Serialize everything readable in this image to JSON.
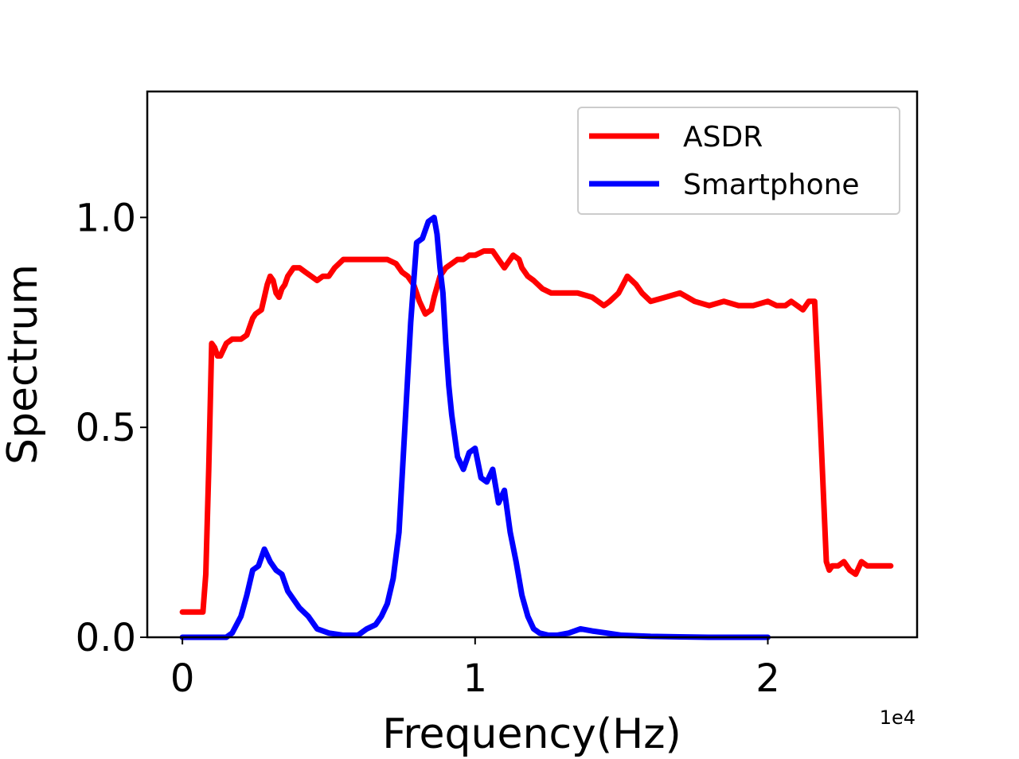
{
  "chart_data": {
    "type": "line",
    "xlabel": "Frequency(Hz)",
    "ylabel": "Spectrum",
    "x_offset_label": "1e4",
    "xlim": [
      -0.12,
      2.51
    ],
    "ylim": [
      0.0,
      1.3
    ],
    "x_ticks": [
      0,
      1,
      2
    ],
    "x_tick_labels": [
      "0",
      "1",
      "2"
    ],
    "y_ticks": [
      0.0,
      0.5,
      1.0
    ],
    "y_tick_labels": [
      "0.0",
      "0.5",
      "1.0"
    ],
    "grid": false,
    "legend_position": "upper-right",
    "series": [
      {
        "name": "ASDR",
        "color": "#ff0000",
        "x": [
          0,
          0.03,
          0.07,
          0.08,
          0.09,
          0.1,
          0.11,
          0.12,
          0.13,
          0.15,
          0.17,
          0.19,
          0.2,
          0.22,
          0.24,
          0.25,
          0.27,
          0.29,
          0.3,
          0.31,
          0.32,
          0.33,
          0.34,
          0.35,
          0.36,
          0.38,
          0.4,
          0.42,
          0.44,
          0.46,
          0.48,
          0.5,
          0.52,
          0.55,
          0.6,
          0.65,
          0.7,
          0.73,
          0.75,
          0.77,
          0.79,
          0.81,
          0.83,
          0.85,
          0.86,
          0.88,
          0.9,
          0.92,
          0.94,
          0.96,
          0.98,
          1.0,
          1.03,
          1.06,
          1.08,
          1.1,
          1.12,
          1.13,
          1.15,
          1.16,
          1.18,
          1.2,
          1.23,
          1.26,
          1.3,
          1.35,
          1.4,
          1.42,
          1.44,
          1.46,
          1.49,
          1.52,
          1.55,
          1.57,
          1.6,
          1.65,
          1.7,
          1.75,
          1.8,
          1.85,
          1.9,
          1.95,
          2.0,
          2.03,
          2.06,
          2.08,
          2.1,
          2.12,
          2.14,
          2.16,
          2.18,
          2.2,
          2.21,
          2.22,
          2.24,
          2.26,
          2.28,
          2.3,
          2.32,
          2.34,
          2.37,
          2.4,
          2.42
        ],
        "y": [
          0.06,
          0.06,
          0.06,
          0.15,
          0.4,
          0.7,
          0.69,
          0.67,
          0.67,
          0.7,
          0.71,
          0.71,
          0.71,
          0.72,
          0.76,
          0.77,
          0.78,
          0.84,
          0.86,
          0.85,
          0.82,
          0.81,
          0.83,
          0.84,
          0.86,
          0.88,
          0.88,
          0.87,
          0.86,
          0.85,
          0.86,
          0.86,
          0.88,
          0.9,
          0.9,
          0.9,
          0.9,
          0.89,
          0.87,
          0.86,
          0.84,
          0.8,
          0.77,
          0.78,
          0.81,
          0.86,
          0.88,
          0.89,
          0.9,
          0.9,
          0.91,
          0.91,
          0.92,
          0.92,
          0.9,
          0.88,
          0.9,
          0.91,
          0.9,
          0.88,
          0.86,
          0.85,
          0.83,
          0.82,
          0.82,
          0.82,
          0.81,
          0.8,
          0.79,
          0.8,
          0.82,
          0.86,
          0.84,
          0.82,
          0.8,
          0.81,
          0.82,
          0.8,
          0.79,
          0.8,
          0.79,
          0.79,
          0.8,
          0.79,
          0.79,
          0.8,
          0.79,
          0.78,
          0.8,
          0.8,
          0.5,
          0.18,
          0.16,
          0.17,
          0.17,
          0.18,
          0.16,
          0.15,
          0.18,
          0.17,
          0.17,
          0.17,
          0.17
        ]
      },
      {
        "name": "Smartphone",
        "color": "#0000ff",
        "x": [
          0,
          0.1,
          0.15,
          0.17,
          0.2,
          0.22,
          0.24,
          0.26,
          0.28,
          0.3,
          0.32,
          0.34,
          0.36,
          0.38,
          0.4,
          0.43,
          0.46,
          0.5,
          0.55,
          0.6,
          0.63,
          0.66,
          0.68,
          0.7,
          0.72,
          0.74,
          0.76,
          0.78,
          0.8,
          0.82,
          0.84,
          0.86,
          0.87,
          0.88,
          0.89,
          0.9,
          0.91,
          0.92,
          0.94,
          0.96,
          0.98,
          1.0,
          1.02,
          1.04,
          1.06,
          1.08,
          1.1,
          1.12,
          1.14,
          1.16,
          1.18,
          1.2,
          1.22,
          1.25,
          1.28,
          1.32,
          1.36,
          1.4,
          1.45,
          1.5,
          1.6,
          1.7,
          1.8,
          1.9,
          2.0
        ],
        "y": [
          0.0,
          0.0,
          0.0,
          0.01,
          0.05,
          0.1,
          0.16,
          0.17,
          0.21,
          0.18,
          0.16,
          0.15,
          0.11,
          0.09,
          0.07,
          0.05,
          0.02,
          0.01,
          0.005,
          0.005,
          0.02,
          0.03,
          0.05,
          0.08,
          0.14,
          0.25,
          0.5,
          0.75,
          0.94,
          0.95,
          0.99,
          1.0,
          0.96,
          0.88,
          0.82,
          0.7,
          0.6,
          0.53,
          0.43,
          0.4,
          0.44,
          0.45,
          0.38,
          0.37,
          0.4,
          0.32,
          0.35,
          0.25,
          0.18,
          0.1,
          0.05,
          0.02,
          0.01,
          0.005,
          0.005,
          0.01,
          0.02,
          0.015,
          0.01,
          0.005,
          0.002,
          0.001,
          0.0,
          0.0,
          0.0
        ]
      }
    ]
  }
}
